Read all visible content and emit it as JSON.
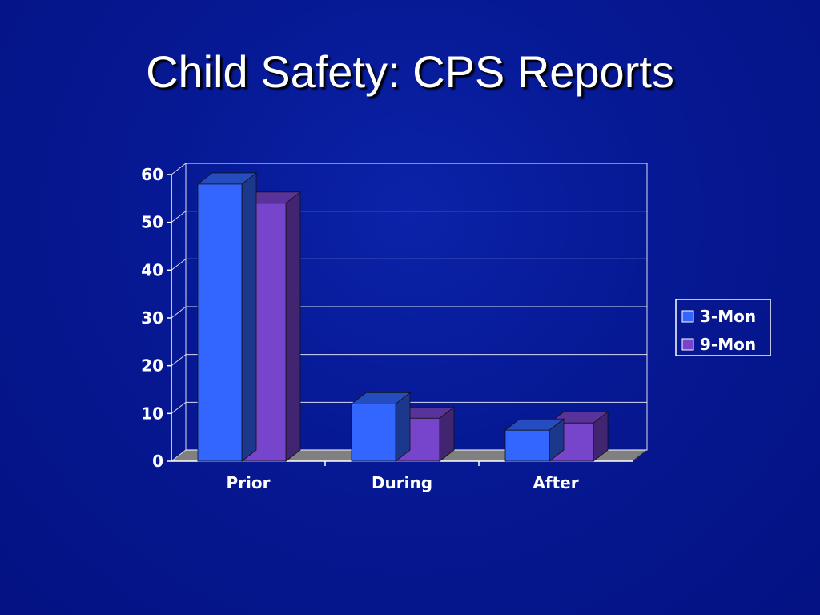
{
  "title": "Child Safety: CPS Reports",
  "chart_data": {
    "type": "bar",
    "categories": [
      "Prior",
      "During",
      "After"
    ],
    "series": [
      {
        "name": "3-Mon",
        "values": [
          58,
          12,
          6.5
        ]
      },
      {
        "name": "9-Mon",
        "values": [
          54,
          9,
          8
        ]
      }
    ],
    "ylim": [
      0,
      60
    ],
    "yticks": [
      0,
      10,
      20,
      30,
      40,
      50,
      60
    ],
    "grid": true,
    "legend": "right",
    "three_d": true,
    "colors": {
      "3-Mon": "#3366ff",
      "9-Mon": "#7744cc",
      "background": "#061893",
      "axis": "#ffffff",
      "floor": "#808080"
    }
  }
}
